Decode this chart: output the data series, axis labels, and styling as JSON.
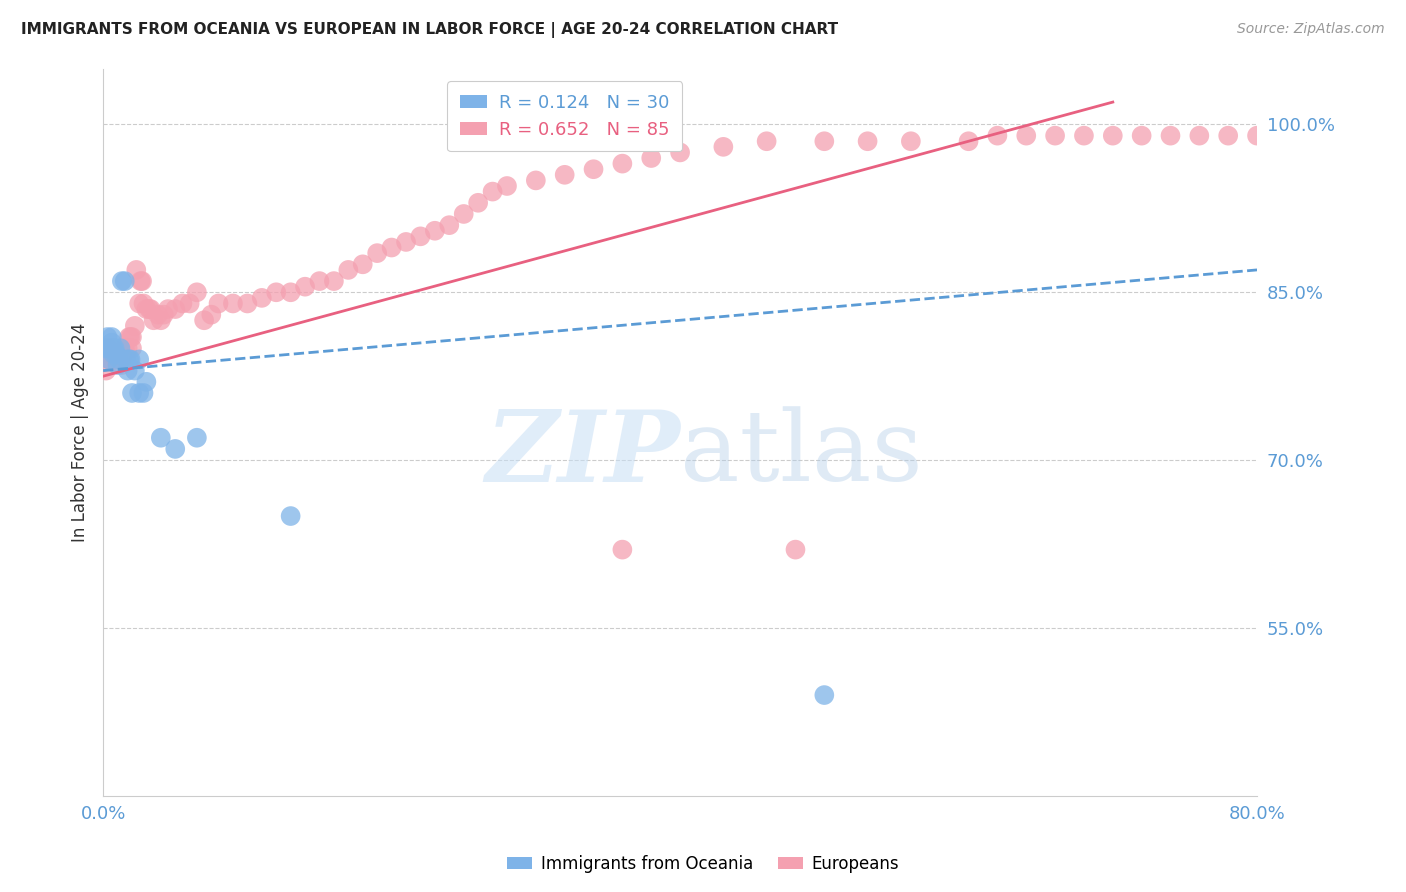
{
  "title": "IMMIGRANTS FROM OCEANIA VS EUROPEAN IN LABOR FORCE | AGE 20-24 CORRELATION CHART",
  "source": "Source: ZipAtlas.com",
  "ylabel": "In Labor Force | Age 20-24",
  "xmin": 0.0,
  "xmax": 0.8,
  "ymin": 0.4,
  "ymax": 1.05,
  "yticks": [
    0.55,
    0.7,
    0.85,
    1.0
  ],
  "ytick_labels": [
    "55.0%",
    "70.0%",
    "85.0%",
    "100.0%"
  ],
  "xticks": [
    0.0,
    0.1,
    0.2,
    0.3,
    0.4,
    0.5,
    0.6,
    0.7,
    0.8
  ],
  "xtick_labels": [
    "0.0%",
    "",
    "",
    "",
    "",
    "",
    "",
    "",
    "80.0%"
  ],
  "blue_R": 0.124,
  "blue_N": 30,
  "pink_R": 0.652,
  "pink_N": 85,
  "blue_color": "#7eb3e8",
  "pink_color": "#f4a0b0",
  "trend_blue": "#5b9bd5",
  "trend_pink": "#e86080",
  "legend_label_blue": "Immigrants from Oceania",
  "legend_label_pink": "Europeans",
  "watermark_zip": "ZIP",
  "watermark_atlas": "atlas",
  "blue_x": [
    0.002,
    0.003,
    0.004,
    0.005,
    0.006,
    0.006,
    0.007,
    0.007,
    0.008,
    0.009,
    0.01,
    0.011,
    0.012,
    0.013,
    0.015,
    0.016,
    0.017,
    0.018,
    0.019,
    0.02,
    0.022,
    0.025,
    0.025,
    0.028,
    0.03,
    0.04,
    0.05,
    0.065,
    0.13,
    0.5
  ],
  "blue_y": [
    0.8,
    0.81,
    0.79,
    0.8,
    0.805,
    0.81,
    0.8,
    0.795,
    0.8,
    0.795,
    0.785,
    0.79,
    0.8,
    0.86,
    0.86,
    0.79,
    0.78,
    0.79,
    0.79,
    0.76,
    0.78,
    0.79,
    0.76,
    0.76,
    0.77,
    0.72,
    0.71,
    0.72,
    0.65,
    0.49
  ],
  "pink_x": [
    0.002,
    0.003,
    0.004,
    0.005,
    0.006,
    0.007,
    0.008,
    0.009,
    0.01,
    0.011,
    0.012,
    0.013,
    0.014,
    0.015,
    0.016,
    0.017,
    0.018,
    0.019,
    0.02,
    0.02,
    0.022,
    0.023,
    0.025,
    0.026,
    0.027,
    0.028,
    0.03,
    0.032,
    0.033,
    0.035,
    0.038,
    0.04,
    0.042,
    0.045,
    0.05,
    0.055,
    0.06,
    0.065,
    0.07,
    0.075,
    0.08,
    0.09,
    0.1,
    0.11,
    0.12,
    0.13,
    0.14,
    0.15,
    0.16,
    0.17,
    0.18,
    0.19,
    0.2,
    0.21,
    0.22,
    0.23,
    0.24,
    0.25,
    0.26,
    0.27,
    0.28,
    0.3,
    0.32,
    0.34,
    0.36,
    0.38,
    0.4,
    0.43,
    0.46,
    0.5,
    0.53,
    0.56,
    0.6,
    0.62,
    0.64,
    0.66,
    0.68,
    0.7,
    0.72,
    0.74,
    0.76,
    0.78,
    0.8,
    0.36,
    0.48
  ],
  "pink_y": [
    0.78,
    0.8,
    0.79,
    0.795,
    0.8,
    0.795,
    0.795,
    0.79,
    0.795,
    0.795,
    0.79,
    0.785,
    0.795,
    0.8,
    0.795,
    0.8,
    0.81,
    0.81,
    0.8,
    0.81,
    0.82,
    0.87,
    0.84,
    0.86,
    0.86,
    0.84,
    0.835,
    0.835,
    0.835,
    0.825,
    0.83,
    0.825,
    0.83,
    0.835,
    0.835,
    0.84,
    0.84,
    0.85,
    0.825,
    0.83,
    0.84,
    0.84,
    0.84,
    0.845,
    0.85,
    0.85,
    0.855,
    0.86,
    0.86,
    0.87,
    0.875,
    0.885,
    0.89,
    0.895,
    0.9,
    0.905,
    0.91,
    0.92,
    0.93,
    0.94,
    0.945,
    0.95,
    0.955,
    0.96,
    0.965,
    0.97,
    0.975,
    0.98,
    0.985,
    0.985,
    0.985,
    0.985,
    0.985,
    0.99,
    0.99,
    0.99,
    0.99,
    0.99,
    0.99,
    0.99,
    0.99,
    0.99,
    0.99,
    0.62,
    0.62
  ],
  "blue_trend_x0": 0.0,
  "blue_trend_x1": 0.8,
  "blue_trend_y0": 0.78,
  "blue_trend_y1": 0.87,
  "pink_trend_x0": 0.0,
  "pink_trend_x1": 0.7,
  "pink_trend_y0": 0.775,
  "pink_trend_y1": 1.02
}
